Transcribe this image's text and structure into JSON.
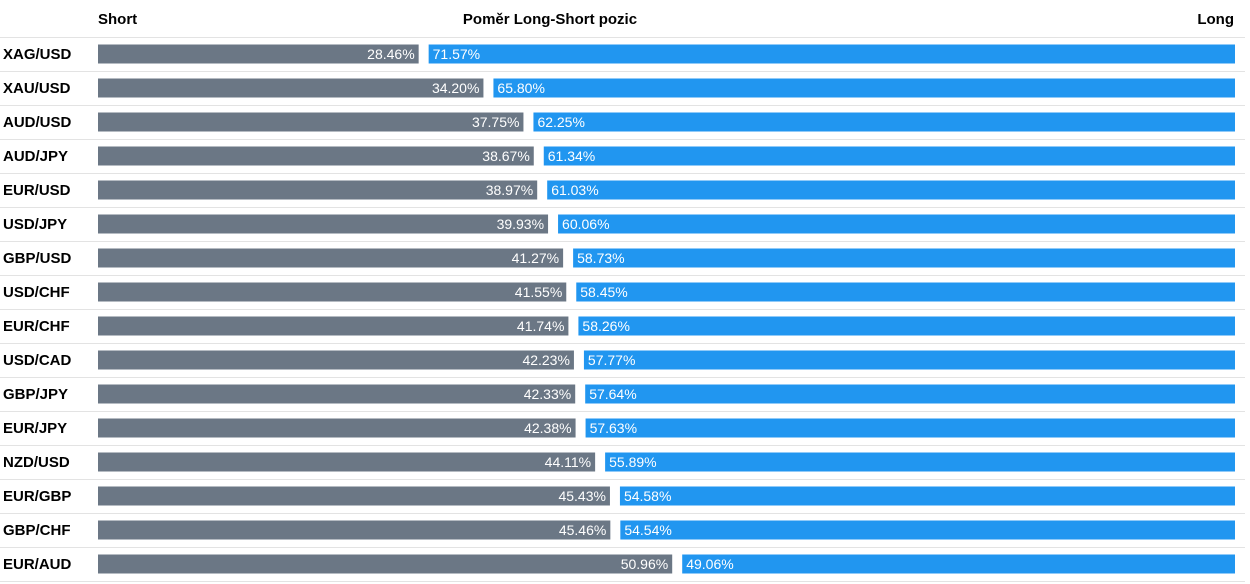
{
  "chart_data": {
    "type": "bar",
    "title": "Poměr Long-Short pozic",
    "short_label": "Short",
    "long_label": "Long",
    "categories": [
      "XAG/USD",
      "XAU/USD",
      "AUD/USD",
      "AUD/JPY",
      "EUR/USD",
      "USD/JPY",
      "GBP/USD",
      "USD/CHF",
      "EUR/CHF",
      "USD/CAD",
      "GBP/JPY",
      "EUR/JPY",
      "NZD/USD",
      "EUR/GBP",
      "GBP/CHF",
      "EUR/AUD"
    ],
    "series": [
      {
        "name": "Short",
        "color": "#6b7785",
        "values": [
          28.46,
          34.2,
          37.75,
          38.67,
          38.97,
          39.93,
          41.27,
          41.55,
          41.74,
          42.23,
          42.33,
          42.38,
          44.11,
          45.43,
          45.46,
          50.96
        ],
        "labels": [
          "28.46%",
          "34.20%",
          "37.75%",
          "38.67%",
          "38.97%",
          "39.93%",
          "41.27%",
          "41.55%",
          "41.74%",
          "42.23%",
          "42.33%",
          "42.38%",
          "44.11%",
          "45.43%",
          "45.46%",
          "50.96%"
        ]
      },
      {
        "name": "Long",
        "color": "#2196f0",
        "values": [
          71.57,
          65.8,
          62.25,
          61.34,
          61.03,
          60.06,
          58.73,
          58.45,
          58.26,
          57.77,
          57.64,
          57.63,
          55.89,
          54.58,
          54.54,
          49.06
        ],
        "labels": [
          "71.57%",
          "65.80%",
          "62.25%",
          "61.34%",
          "61.03%",
          "60.06%",
          "58.73%",
          "58.45%",
          "58.26%",
          "57.77%",
          "57.64%",
          "57.63%",
          "55.89%",
          "54.58%",
          "54.54%",
          "49.06%"
        ]
      }
    ],
    "grid": "horizontal row separators",
    "divider_color": "#e3e3e3"
  }
}
